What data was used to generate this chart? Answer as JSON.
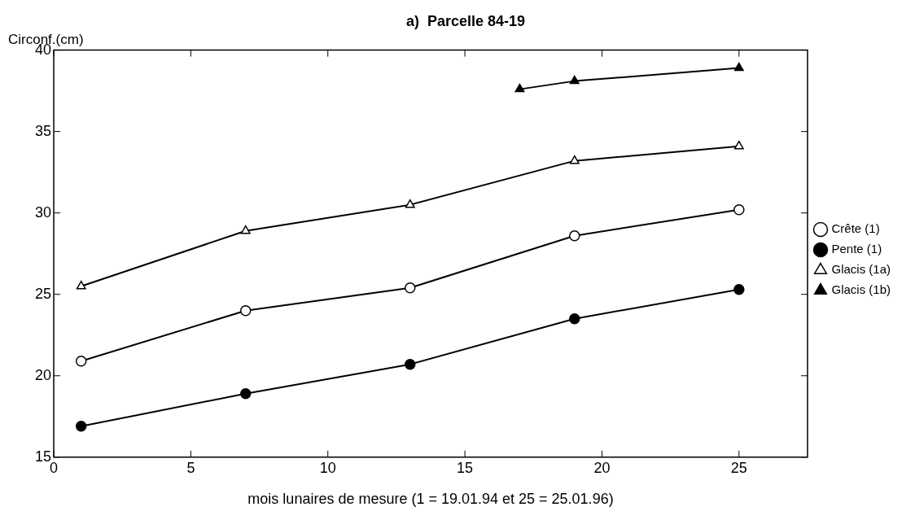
{
  "chart_data": {
    "type": "line",
    "title": "a)  Parcelle 84-19",
    "xlabel": "mois lunaires de mesure (1 = 19.01.94 et 25 = 25.01.96)",
    "ylabel": "Circonf.(cm)",
    "xlim": [
      0,
      27.5
    ],
    "xticks": [
      0,
      5,
      10,
      15,
      20,
      25
    ],
    "ylim": [
      15,
      40
    ],
    "yticks": [
      15,
      20,
      25,
      30,
      35,
      40
    ],
    "grid": false,
    "legend": "right",
    "line_style": "solid",
    "series": [
      {
        "name": "Crête (1)",
        "color": "#000000",
        "marker": "circle",
        "colors": [
          "#ffffff",
          "#ffffff",
          "#ffffff",
          "#ffffff",
          "#ffffff"
        ],
        "x": [
          1,
          7,
          13,
          19,
          25
        ],
        "values": [
          20.9,
          24.0,
          25.4,
          28.6,
          30.2
        ]
      },
      {
        "name": "Pente (1)",
        "color": "#000000",
        "marker": "circle",
        "colors": [
          "#000000",
          "#000000",
          "#000000",
          "#000000",
          "#000000"
        ],
        "x": [
          1,
          7,
          13,
          19,
          25
        ],
        "values": [
          16.9,
          18.9,
          20.7,
          23.5,
          25.3
        ]
      },
      {
        "name": "Glacis (1a)",
        "color": "#000000",
        "marker": "triangle",
        "colors": [
          "#ffffff",
          "#ffffff",
          "#ffffff",
          "#ffffff",
          "#ffffff"
        ],
        "x": [
          1,
          7,
          13,
          19,
          25
        ],
        "values": [
          25.5,
          28.9,
          30.5,
          33.2,
          34.1
        ]
      },
      {
        "name": "Glacis (1b)",
        "color": "#000000",
        "marker": "triangle",
        "colors": [
          "#000000",
          "#000000",
          "#000000"
        ],
        "x": [
          17,
          19,
          25
        ],
        "values": [
          37.6,
          38.1,
          38.9
        ]
      }
    ]
  }
}
